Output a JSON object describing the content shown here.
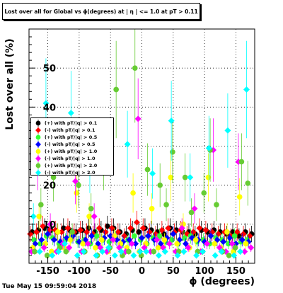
{
  "chart_data": {
    "type": "scatter",
    "title": "Lost over all for Global vs ϕ(degrees) at | η | <= 1.0 at pT > 0.11",
    "xlabel": "ϕ (degrees)",
    "ylabel": "Lost over all (%)",
    "xlim": [
      -180,
      180
    ],
    "ylim": [
      0,
      60
    ],
    "x_ticks": [
      "-150",
      "-100",
      "-50",
      "0",
      "50",
      "100",
      "150"
    ],
    "y_ticks": [
      "10",
      "20",
      "30",
      "40",
      "50"
    ],
    "grid": true,
    "legend_position": "middle-left",
    "series": [
      {
        "name": "(+) with pT/|q| > 0.1",
        "color": "#000000",
        "marker": "circle",
        "x": [
          -175,
          -165,
          -155,
          -145,
          -135,
          -125,
          -115,
          -105,
          -95,
          -85,
          -75,
          -65,
          -55,
          -45,
          -35,
          -25,
          -15,
          -5,
          5,
          15,
          25,
          35,
          45,
          55,
          65,
          75,
          85,
          95,
          105,
          115,
          125,
          135,
          145,
          155,
          165,
          175
        ],
        "y": [
          8,
          8.5,
          9,
          8.5,
          8,
          9,
          8.5,
          8,
          8.5,
          9,
          8,
          8.5,
          9.5,
          9,
          8,
          7.5,
          8.5,
          8,
          9,
          8.5,
          8,
          7.5,
          9,
          8.5,
          8,
          8,
          7.5,
          8.5,
          8,
          8.5,
          8,
          7.5,
          8,
          7,
          8,
          7.5
        ]
      },
      {
        "name": "(-) with pT/|q| > 0.1",
        "color": "#ff0000",
        "marker": "diamond",
        "x": [
          -178,
          -168,
          -158,
          -148,
          -138,
          -128,
          -118,
          -108,
          -98,
          -88,
          -78,
          -68,
          -58,
          -48,
          -38,
          -28,
          -18,
          -8,
          2,
          12,
          22,
          32,
          42,
          52,
          62,
          72,
          82,
          92,
          102,
          112,
          122,
          132,
          142,
          152,
          162,
          172
        ],
        "y": [
          7.5,
          8,
          9.5,
          8.5,
          8.5,
          8,
          9,
          8,
          8.5,
          8,
          7.5,
          9,
          8,
          9,
          8,
          7,
          9,
          10.5,
          9,
          8,
          7.5,
          8.5,
          9,
          8,
          8.5,
          7.5,
          8,
          9,
          8.5,
          8,
          7.5,
          8,
          7,
          8,
          7.5,
          7
        ]
      },
      {
        "name": "(+) with pT/|q| > 0.5",
        "color": "#33ff33",
        "marker": "circle",
        "x": [
          -172,
          -162,
          -152,
          -142,
          -132,
          -122,
          -112,
          -102,
          -92,
          -82,
          -72,
          -62,
          -52,
          -42,
          -32,
          -22,
          -12,
          -2,
          8,
          18,
          28,
          38,
          48,
          58,
          68,
          78,
          88,
          98,
          108,
          118,
          128,
          138,
          148,
          158,
          168
        ],
        "y": [
          6,
          5,
          7,
          6.5,
          5,
          6,
          7,
          5.5,
          6,
          5,
          7,
          6,
          5.5,
          6.5,
          5,
          6,
          7,
          6,
          5,
          6.5,
          7,
          5.5,
          6,
          5,
          6.5,
          7,
          5.5,
          6,
          5,
          6.5,
          6,
          5,
          7,
          5.5,
          6
        ]
      },
      {
        "name": "(-) with pT/|q| > 0.5",
        "color": "#0000ff",
        "marker": "diamond",
        "x": [
          -170,
          -160,
          -150,
          -140,
          -130,
          -120,
          -110,
          -100,
          -90,
          -80,
          -70,
          -60,
          -50,
          -40,
          -30,
          -20,
          -10,
          0,
          10,
          20,
          30,
          40,
          50,
          60,
          70,
          80,
          90,
          100,
          110,
          120,
          130,
          140,
          150,
          160,
          170
        ],
        "y": [
          5,
          6,
          7.5,
          6,
          5.5,
          6.5,
          7,
          5.5,
          6,
          7,
          5,
          6.5,
          7,
          6,
          5.5,
          6,
          5,
          6.5,
          7,
          6,
          5,
          6.5,
          7.5,
          6,
          5,
          6.5,
          6,
          5.5,
          7,
          6,
          5.5,
          6.5,
          5,
          6,
          5.5
        ]
      },
      {
        "name": "(+) with pT/|q| > 1.0",
        "color": "#ffff00",
        "marker": "circle",
        "x": [
          -174,
          -164,
          -154,
          -144,
          -134,
          -124,
          -114,
          -104,
          -94,
          -84,
          -74,
          -64,
          -54,
          -44,
          -34,
          -24,
          -14,
          -4,
          6,
          16,
          26,
          36,
          46,
          56,
          66,
          76,
          86,
          96,
          106,
          116,
          126,
          136,
          146,
          156,
          166
        ],
        "y": [
          4,
          12,
          5,
          3,
          8,
          4,
          6,
          18,
          5,
          12,
          4,
          6,
          3,
          7,
          5,
          4,
          18,
          3,
          5,
          14,
          4,
          6,
          22,
          5,
          10,
          4,
          6,
          3,
          22,
          5,
          4,
          8,
          3,
          17,
          5
        ]
      },
      {
        "name": "(-) with pT/|q| > 1.0",
        "color": "#ff00ff",
        "marker": "diamond",
        "x": [
          -176,
          -166,
          -156,
          -146,
          -136,
          -126,
          -116,
          -106,
          -96,
          -86,
          -76,
          -66,
          -56,
          -46,
          -36,
          -26,
          -16,
          -6,
          4,
          14,
          24,
          34,
          44,
          54,
          64,
          74,
          84,
          94,
          104,
          114,
          124,
          134,
          144,
          154,
          164,
          174
        ],
        "y": [
          3,
          26,
          4,
          10,
          3,
          5,
          4,
          21,
          3,
          5,
          12,
          4,
          3,
          6,
          4,
          3,
          5,
          37,
          4,
          3,
          6,
          4,
          5,
          3,
          9,
          4,
          14,
          3,
          5,
          29,
          4,
          3,
          5,
          26,
          3,
          4
        ]
      },
      {
        "name": "(+) with pT/|q| > 2.0",
        "color": "#66cc33",
        "marker": "circle",
        "x": [
          -171,
          -161,
          -151,
          -141,
          -131,
          -121,
          -111,
          -101,
          -91,
          -81,
          -71,
          -61,
          -51,
          -41,
          -31,
          -21,
          -11,
          -1,
          9,
          19,
          29,
          39,
          49,
          59,
          69,
          79,
          89,
          99,
          109,
          119,
          129,
          139,
          149,
          159,
          169
        ],
        "y": [
          3,
          15,
          2,
          22,
          4,
          3,
          8,
          20,
          3,
          14,
          2,
          26,
          4,
          44.5,
          2,
          3,
          50,
          2,
          24,
          3,
          20,
          15,
          28.5,
          3,
          22,
          13,
          3,
          18,
          29,
          15,
          3,
          2,
          4,
          26,
          20.5
        ]
      },
      {
        "name": "(-) with pT/|q| > 2.0",
        "color": "#00ffff",
        "marker": "diamond",
        "x": [
          -173,
          -163,
          -153,
          -143,
          -133,
          -123,
          -113,
          -103,
          -93,
          -83,
          -73,
          -63,
          -53,
          -43,
          -33,
          -23,
          -13,
          -3,
          7,
          17,
          27,
          37,
          47,
          57,
          67,
          77,
          87,
          97,
          107,
          117,
          127,
          137,
          147,
          157,
          167
        ],
        "y": [
          12,
          3,
          41,
          2,
          3,
          5,
          38.5,
          2,
          3,
          25,
          2,
          3,
          4,
          2,
          3,
          30.5,
          2,
          3,
          3,
          23,
          2,
          3,
          36.5,
          2,
          3,
          22,
          2,
          3,
          29.5,
          2,
          3,
          34,
          2,
          3,
          44.5
        ]
      }
    ]
  },
  "timestamp": "Tue May 15 09:59:04 2018"
}
